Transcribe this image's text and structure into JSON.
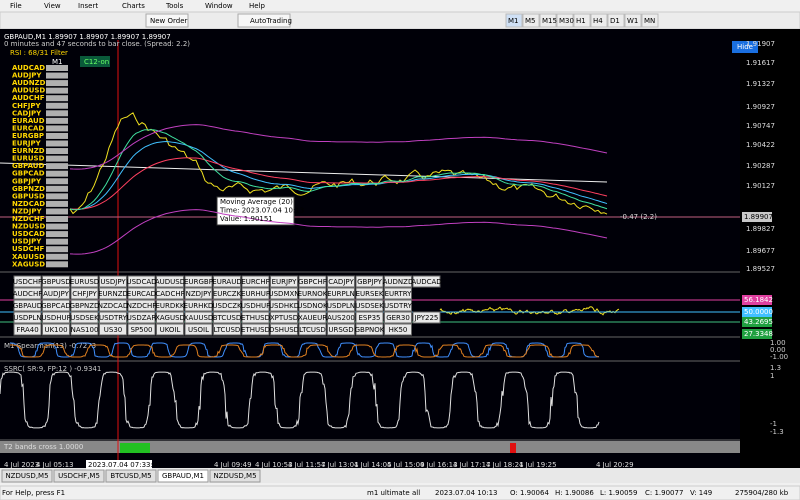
{
  "menu": [
    "File",
    "View",
    "Insert",
    "Charts",
    "Tools",
    "Window",
    "Help"
  ],
  "toolbar": {
    "new_order": "New Order",
    "autotrading": "AutoTrading",
    "timeframes": [
      "M1",
      "M5",
      "M15",
      "M30",
      "H1",
      "H4",
      "D1",
      "W1",
      "MN"
    ]
  },
  "chart": {
    "header": "GBPAUD,M1  1.89907 1.89907 1.89907 1.89907",
    "subheader": "0 minutes and 47 seconds to bar close. (Spread: 2.2)",
    "rsi_filter": "RSI : 68/31 Filter",
    "timeframe_label": "M1",
    "c12": "C12-on",
    "hide": "Hide",
    "symbols": [
      "AUDCAD",
      "AUDJPY",
      "AUDNZD",
      "AUDUSD",
      "AUDCHF",
      "CHFJPY",
      "CADJPY",
      "EURAUD",
      "EURCAD",
      "EURGBP",
      "EURJPY",
      "EURNZD",
      "EURUSD",
      "GBPAUD",
      "GBPCAD",
      "GBPJPY",
      "GBPNZD",
      "GBPUSD",
      "NZDCAD",
      "NZDJPY",
      "NZDCHF",
      "NZDUSD",
      "USDCAD",
      "USDJPY",
      "USDCHF",
      "XAUUSD",
      "XAGUSD"
    ],
    "price_labels": [
      "1.91907",
      "1.91617",
      "1.91327",
      "1.90927",
      "1.90747",
      "1.90422",
      "1.90287",
      "1.90127",
      "1.89827",
      "1.89677",
      "1.89527"
    ],
    "current_price": "1.89907",
    "annotation": "-0.47 (2.2)",
    "tooltip": [
      "Moving Average (20)",
      "Time: 2023.07.04 10:13",
      "Value: 1.90151"
    ]
  },
  "symbol_grid": [
    [
      "USDCHF",
      "GBPUSD",
      "EURUSD",
      "USDJPY",
      "USDCAD",
      "AUDUSD",
      "EURGBP",
      "EURAUD",
      "EURCHF",
      "EURJPY",
      "GBPCHF",
      "CADJPY",
      "GBPJPY",
      "AUDNZD",
      "AUDCAD"
    ],
    [
      "AUDCHF",
      "AUDJPY",
      "CHFJPY",
      "EURNZD",
      "EURCAD",
      "CADCHF",
      "NZDJPY",
      "EURCZK",
      "EURHUF",
      "USDMXN",
      "EURNOK",
      "EURPLN",
      "EURSEK",
      "EURTRY"
    ],
    [
      "GBPAUD",
      "GBPCAD",
      "GBPNZD",
      "NZDCAD",
      "NZDCHF",
      "EURDKK",
      "EURHKD",
      "USDCZK",
      "USDHUF",
      "USDHKD",
      "USDNOK",
      "USDPLN",
      "USDSEK",
      "USDTRY"
    ],
    [
      "USDPLN",
      "USDHUF",
      "USDSEK",
      "USDTRY",
      "USDZAR",
      "XAGUSD",
      "XAUUSD",
      "BTCUSD",
      "ETHUSD",
      "XPTUSD",
      "XAUEUR",
      "AUS200",
      "ESP35",
      "GER30",
      "JPY225"
    ],
    [
      "FRA40",
      "UK100",
      "NAS100",
      "US30",
      "SP500",
      "UKOIL",
      "USOIL",
      "LTCUSD",
      "ETHUSD",
      "DSHUSD",
      "LTCUSD",
      "URSGD",
      "GBPNOK",
      "HK50"
    ]
  ],
  "indicators": {
    "rsi_values": [
      "56.1842",
      "50.0000",
      "43.2695",
      "27.3348"
    ],
    "spearman": "M1 Spearman(13) -0.7273",
    "spearman_axis": [
      "1.00",
      "0.00",
      "-1.00"
    ],
    "ssrc": "SSRC( SR:9, FP:12 ) -0.9341",
    "ssrc_axis": [
      "1.3",
      "1",
      "-1",
      "-1.3"
    ],
    "t2": "T2 bands cross 1.0000"
  },
  "time_labels": [
    "4 Jul 2023",
    "4 Jul 05:13",
    "2023.07.04 07:33:41",
    "4 Jul 09:49",
    "4 Jul 10:53",
    "4 Jul 11:57",
    "4 Jul 13:01",
    "4 Jul 14:05",
    "4 Jul 15:09",
    "4 Jul 16:13",
    "4 Jul 17:17",
    "4 Jul 18:21",
    "4 Jul 19:25",
    "4 Jul 20:29"
  ],
  "tabs": [
    "NZDUSD,M5",
    "USDCHF,M5",
    "BTCUSD,M5",
    "GBPAUD,M1",
    "NZDUSD,M5"
  ],
  "status": [
    "For Help, press F1",
    "m1 ultimate all",
    "2023.07.04 10:13",
    "O: 1.90064",
    "H: 1.90086",
    "L: 1.90059",
    "C: 1.90077",
    "V: 149",
    "275904/280 kb"
  ]
}
